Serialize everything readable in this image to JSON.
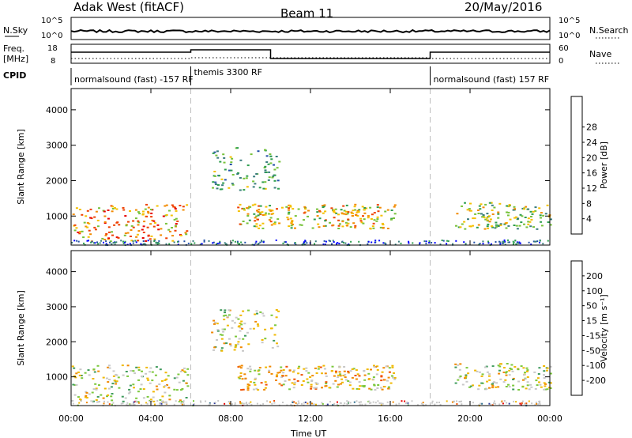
{
  "header": {
    "radar": "Adak West (fitACF)",
    "beam": "Beam 11",
    "date": "20/May/2016"
  },
  "noise_panel": {
    "left_label": "N.Sky",
    "right_label": "N.Search",
    "left_ticks": [
      "10^5",
      "10^0"
    ],
    "right_ticks": [
      "10^5",
      "10^0"
    ]
  },
  "freq_panel": {
    "left_label_1": "Freq.",
    "left_label_2": "[MHz]",
    "right_label": "Nave",
    "left_ticks": [
      "18",
      "8"
    ],
    "right_ticks": [
      "60",
      "0"
    ]
  },
  "cpid": {
    "label": "CPID",
    "segments": [
      {
        "text": "normalsound (fast) -157 RF",
        "start_h": 0,
        "end_h": 6
      },
      {
        "text": "themis 3300 RF",
        "start_h": 6,
        "end_h": 18
      },
      {
        "text": "normalsound (fast) 157 RF",
        "start_h": 18,
        "end_h": 24
      }
    ]
  },
  "colorbars": {
    "power": {
      "label": "Power [dB]",
      "ticks": [
        "4",
        "8",
        "12",
        "16",
        "20",
        "24",
        "28"
      ],
      "colors": [
        "#0000ff",
        "#2451a8",
        "#3a7d7e",
        "#2e9e4e",
        "#77c23a",
        "#f5c000",
        "#f28a00",
        "#ee4000",
        "#e80000"
      ]
    },
    "velocity": {
      "label": "Velocity [m s⁻¹]",
      "ticks": [
        "200",
        "100",
        "50",
        "15",
        "-15",
        "-50",
        "-100",
        "-200"
      ],
      "colors": [
        "#2d3b9e",
        "#2d6e8e",
        "#3f9b5c",
        "#7cc83c",
        "#c8c8c8",
        "#f0b800",
        "#f08800",
        "#f05000",
        "#e80000"
      ]
    }
  },
  "time_axis": {
    "label": "Time UT",
    "ticks": [
      "00:00",
      "04:00",
      "08:00",
      "12:00",
      "16:00",
      "20:00",
      "00:00"
    ]
  },
  "chart_data": [
    {
      "type": "heatmap",
      "panel": "power",
      "ylabel": "Slant Range [km]",
      "xlim_hours": [
        0,
        24
      ],
      "ylim_km": [
        180,
        4600
      ],
      "yticks": [
        1000,
        2000,
        3000,
        4000
      ],
      "cpid_boundaries_h": [
        6,
        18
      ],
      "regions": [
        {
          "t0": 0.0,
          "t1": 5.8,
          "r0": 300,
          "r1": 1350,
          "level": 6
        },
        {
          "t0": 7.0,
          "t1": 10.4,
          "r0": 1750,
          "r1": 2950,
          "level": 3
        },
        {
          "t0": 8.3,
          "t1": 16.2,
          "r0": 650,
          "r1": 1350,
          "level": 5
        },
        {
          "t0": 19.2,
          "t1": 24.0,
          "r0": 650,
          "r1": 1400,
          "level": 4
        }
      ]
    },
    {
      "type": "heatmap",
      "panel": "velocity",
      "ylabel": "Slant Range [km]",
      "xlim_hours": [
        0,
        24
      ],
      "ylim_km": [
        180,
        4600
      ],
      "yticks": [
        1000,
        2000,
        3000,
        4000
      ],
      "cpid_boundaries_h": [
        6,
        18
      ],
      "regions": [
        {
          "t0": 0.0,
          "t1": 5.8,
          "r0": 300,
          "r1": 1350,
          "level": 4
        },
        {
          "t0": 7.0,
          "t1": 10.4,
          "r0": 1750,
          "r1": 2950,
          "level": 4
        },
        {
          "t0": 8.3,
          "t1": 16.2,
          "r0": 650,
          "r1": 1350,
          "level": 5
        },
        {
          "t0": 19.2,
          "t1": 24.0,
          "r0": 650,
          "r1": 1400,
          "level": 4
        }
      ]
    }
  ]
}
